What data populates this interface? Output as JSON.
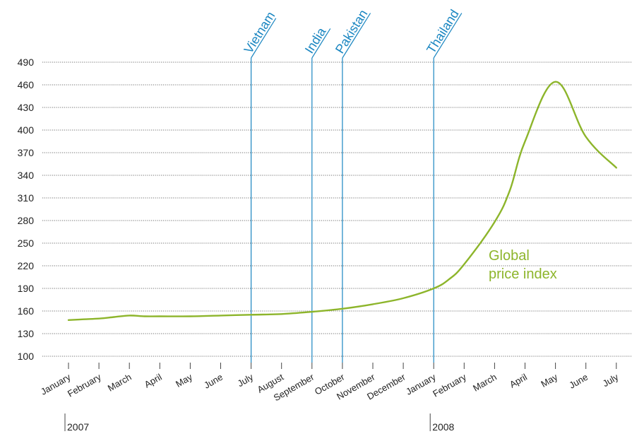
{
  "chart_data": {
    "type": "line",
    "ylim": [
      100,
      490
    ],
    "y_ticks": [
      100,
      130,
      160,
      190,
      220,
      250,
      280,
      310,
      340,
      370,
      400,
      430,
      460,
      490
    ],
    "months": [
      "January",
      "February",
      "March",
      "April",
      "May",
      "June",
      "July",
      "August",
      "September",
      "October",
      "November",
      "December",
      "January",
      "February",
      "March",
      "April",
      "May",
      "June",
      "July"
    ],
    "year_labels": [
      {
        "label": "2007",
        "index": 0
      },
      {
        "label": "2008",
        "index": 12
      }
    ],
    "series": [
      {
        "name": "Global price index",
        "color": "#8db52b",
        "points": [
          [
            0,
            148
          ],
          [
            0.5,
            149
          ],
          [
            1,
            150
          ],
          [
            1.5,
            152
          ],
          [
            2,
            154
          ],
          [
            2.5,
            153
          ],
          [
            3,
            153
          ],
          [
            4,
            153
          ],
          [
            5,
            154
          ],
          [
            6,
            155
          ],
          [
            7,
            156
          ],
          [
            8,
            159
          ],
          [
            9,
            163
          ],
          [
            10,
            169
          ],
          [
            11,
            177
          ],
          [
            12,
            190
          ],
          [
            12.5,
            202
          ],
          [
            13,
            222
          ],
          [
            14,
            278
          ],
          [
            14.5,
            320
          ],
          [
            15,
            385
          ],
          [
            16,
            464
          ],
          [
            17,
            391
          ],
          [
            18,
            350
          ]
        ]
      }
    ],
    "series_label": "Global price index",
    "series_label_lines": [
      "Global",
      "price index"
    ],
    "events": [
      {
        "label": "Vietnam",
        "index": 6
      },
      {
        "label": "India",
        "index": 8
      },
      {
        "label": "Pakistan",
        "index": 9
      },
      {
        "label": "Thailand",
        "index": 12
      }
    ],
    "event_color": "#1a86c1",
    "grid": "horizontal dotted"
  }
}
